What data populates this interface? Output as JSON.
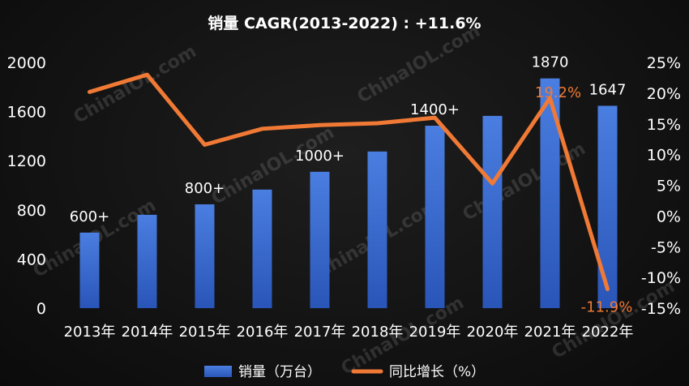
{
  "chart_data": {
    "type": "bar+line",
    "title": "销量 CAGR(2013-2022) : +11.6%",
    "categories": [
      "2013年",
      "2014年",
      "2015年",
      "2016年",
      "2017年",
      "2018年",
      "2019年",
      "2020年",
      "2021年",
      "2022年"
    ],
    "series": [
      {
        "name": "销量（万台）",
        "type": "bar",
        "axis": "left",
        "values": [
          615,
          760,
          845,
          965,
          1110,
          1275,
          1485,
          1565,
          1870,
          1647
        ]
      },
      {
        "name": "同比增长（%）",
        "type": "line",
        "axis": "right",
        "values": [
          20.2,
          23.0,
          11.6,
          14.2,
          14.8,
          15.1,
          16.0,
          5.3,
          19.2,
          -11.9
        ]
      }
    ],
    "y_left": {
      "min": 0,
      "max": 2000,
      "ticks": [
        "0",
        "400",
        "800",
        "1200",
        "1600",
        "2000"
      ]
    },
    "y_right": {
      "min": -15,
      "max": 25,
      "ticks": [
        "-15%",
        "-10%",
        "-5%",
        "0%",
        "5%",
        "10%",
        "15%",
        "20%",
        "25%"
      ]
    },
    "annotations": [
      {
        "index": 0,
        "text": "600+"
      },
      {
        "index": 2,
        "text": "800+"
      },
      {
        "index": 4,
        "text": "1000+"
      },
      {
        "index": 6,
        "text": "1400+"
      },
      {
        "index": 8,
        "text": "1870"
      },
      {
        "index": 9,
        "text": "1647"
      }
    ],
    "line_labels": [
      {
        "index": 8,
        "text": "19.2%"
      },
      {
        "index": 9,
        "text": "-11.9%"
      }
    ],
    "legend": {
      "position": "bottom",
      "items": [
        "销量（万台）",
        "同比增长（%）"
      ]
    },
    "grid": false,
    "colors": {
      "bar_top": "#4a7ee0",
      "bar_bottom": "#2a55b8",
      "line": "#f07a35"
    }
  },
  "watermark": "ChinaIOL.com"
}
